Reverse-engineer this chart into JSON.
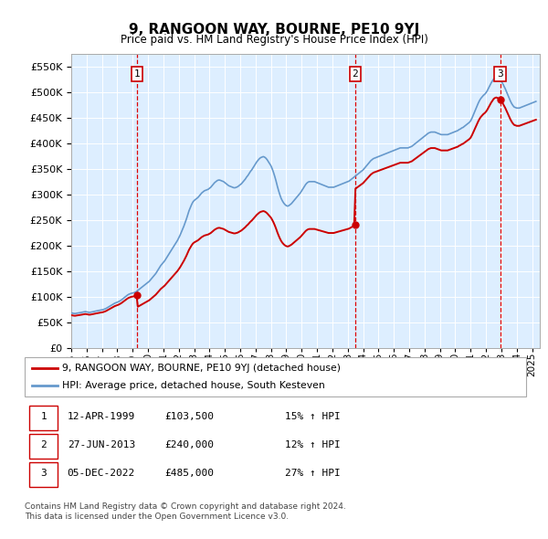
{
  "title": "9, RANGOON WAY, BOURNE, PE10 9YJ",
  "subtitle": "Price paid vs. HM Land Registry's House Price Index (HPI)",
  "xlim_start": 1995.0,
  "xlim_end": 2025.5,
  "ylim": [
    0,
    575000
  ],
  "yticks": [
    0,
    50000,
    100000,
    150000,
    200000,
    250000,
    300000,
    350000,
    400000,
    450000,
    500000,
    550000
  ],
  "sale_dates": [
    1999.28,
    2013.49,
    2022.92
  ],
  "sale_prices": [
    103500,
    240000,
    485000
  ],
  "sale_labels": [
    "1",
    "2",
    "3"
  ],
  "vline_color": "#dd0000",
  "sale_color": "#cc0000",
  "hpi_color": "#6699cc",
  "plot_bg": "#ddeeff",
  "legend_line1": "9, RANGOON WAY, BOURNE, PE10 9YJ (detached house)",
  "legend_line2": "HPI: Average price, detached house, South Kesteven",
  "table_rows": [
    [
      "1",
      "12-APR-1999",
      "£103,500",
      "15% ↑ HPI"
    ],
    [
      "2",
      "27-JUN-2013",
      "£240,000",
      "12% ↑ HPI"
    ],
    [
      "3",
      "05-DEC-2022",
      "£485,000",
      "27% ↑ HPI"
    ]
  ],
  "footer": [
    "Contains HM Land Registry data © Crown copyright and database right 2024.",
    "This data is licensed under the Open Government Licence v3.0."
  ],
  "hpi_values": [
    68000,
    67500,
    67000,
    66800,
    67200,
    67500,
    68000,
    68500,
    69000,
    69500,
    70000,
    70500,
    70000,
    69500,
    69000,
    69200,
    69800,
    70500,
    71000,
    71500,
    72000,
    72500,
    73000,
    73500,
    74000,
    74500,
    75500,
    76500,
    78000,
    79500,
    81000,
    82500,
    84000,
    85500,
    87000,
    88000,
    89000,
    90000,
    91500,
    93000,
    95000,
    97000,
    99000,
    101000,
    103000,
    104500,
    105500,
    106500,
    107000,
    107500,
    108500,
    110000,
    112000,
    114000,
    116000,
    118000,
    120000,
    122000,
    124000,
    126000,
    128000,
    130000,
    133000,
    136000,
    139000,
    142000,
    145000,
    149000,
    153000,
    157000,
    161000,
    164000,
    167000,
    170000,
    174000,
    178000,
    182000,
    186000,
    190000,
    194000,
    198000,
    202000,
    206000,
    210000,
    215000,
    220000,
    226000,
    232000,
    238000,
    245000,
    252000,
    260000,
    268000,
    274000,
    280000,
    285000,
    288000,
    290000,
    292000,
    294000,
    297000,
    300000,
    303000,
    305000,
    307000,
    308000,
    309000,
    310000,
    312000,
    314000,
    317000,
    320000,
    323000,
    325000,
    327000,
    328000,
    328000,
    327000,
    326000,
    325000,
    323000,
    321000,
    319000,
    317000,
    316000,
    315000,
    314000,
    313000,
    313000,
    314000,
    315000,
    317000,
    319000,
    321000,
    324000,
    327000,
    330000,
    334000,
    337000,
    341000,
    345000,
    348000,
    352000,
    356000,
    360000,
    364000,
    367000,
    370000,
    372000,
    373000,
    374000,
    373000,
    371000,
    368000,
    364000,
    360000,
    356000,
    350000,
    343000,
    335000,
    326000,
    316000,
    307000,
    299000,
    292000,
    287000,
    283000,
    280000,
    278000,
    277000,
    278000,
    280000,
    282000,
    285000,
    288000,
    291000,
    294000,
    297000,
    300000,
    303000,
    307000,
    311000,
    315000,
    319000,
    322000,
    324000,
    325000,
    325000,
    325000,
    325000,
    325000,
    324000,
    323000,
    322000,
    321000,
    320000,
    319000,
    318000,
    317000,
    316000,
    315000,
    314000,
    314000,
    314000,
    314000,
    314000,
    315000,
    316000,
    317000,
    318000,
    319000,
    320000,
    321000,
    322000,
    323000,
    324000,
    325000,
    326000,
    328000,
    330000,
    332000,
    334000,
    336000,
    338000,
    340000,
    342000,
    344000,
    346000,
    348000,
    351000,
    354000,
    357000,
    360000,
    363000,
    366000,
    368000,
    370000,
    371000,
    372000,
    373000,
    374000,
    375000,
    376000,
    377000,
    378000,
    379000,
    380000,
    381000,
    382000,
    383000,
    384000,
    385000,
    386000,
    387000,
    388000,
    389000,
    390000,
    391000,
    391000,
    391000,
    391000,
    391000,
    391000,
    391000,
    392000,
    393000,
    394000,
    396000,
    398000,
    400000,
    402000,
    404000,
    406000,
    408000,
    410000,
    412000,
    414000,
    416000,
    418000,
    420000,
    421000,
    422000,
    422000,
    422000,
    422000,
    421000,
    420000,
    419000,
    418000,
    417000,
    417000,
    417000,
    417000,
    417000,
    417000,
    418000,
    419000,
    420000,
    421000,
    422000,
    423000,
    424000,
    425000,
    427000,
    428000,
    430000,
    431000,
    433000,
    435000,
    437000,
    439000,
    441000,
    444000,
    449000,
    455000,
    461000,
    467000,
    473000,
    479000,
    484000,
    488000,
    491000,
    494000,
    496000,
    499000,
    503000,
    508000,
    513000,
    518000,
    522000,
    526000,
    528000,
    529000,
    528000,
    526000,
    524000,
    521000,
    517000,
    512000,
    507000,
    501000,
    495000,
    489000,
    483000,
    478000,
    474000,
    471000,
    470000,
    469000,
    469000,
    469000,
    470000,
    471000,
    472000,
    473000,
    474000,
    475000,
    476000,
    477000,
    478000,
    479000,
    480000,
    481000,
    482000
  ]
}
